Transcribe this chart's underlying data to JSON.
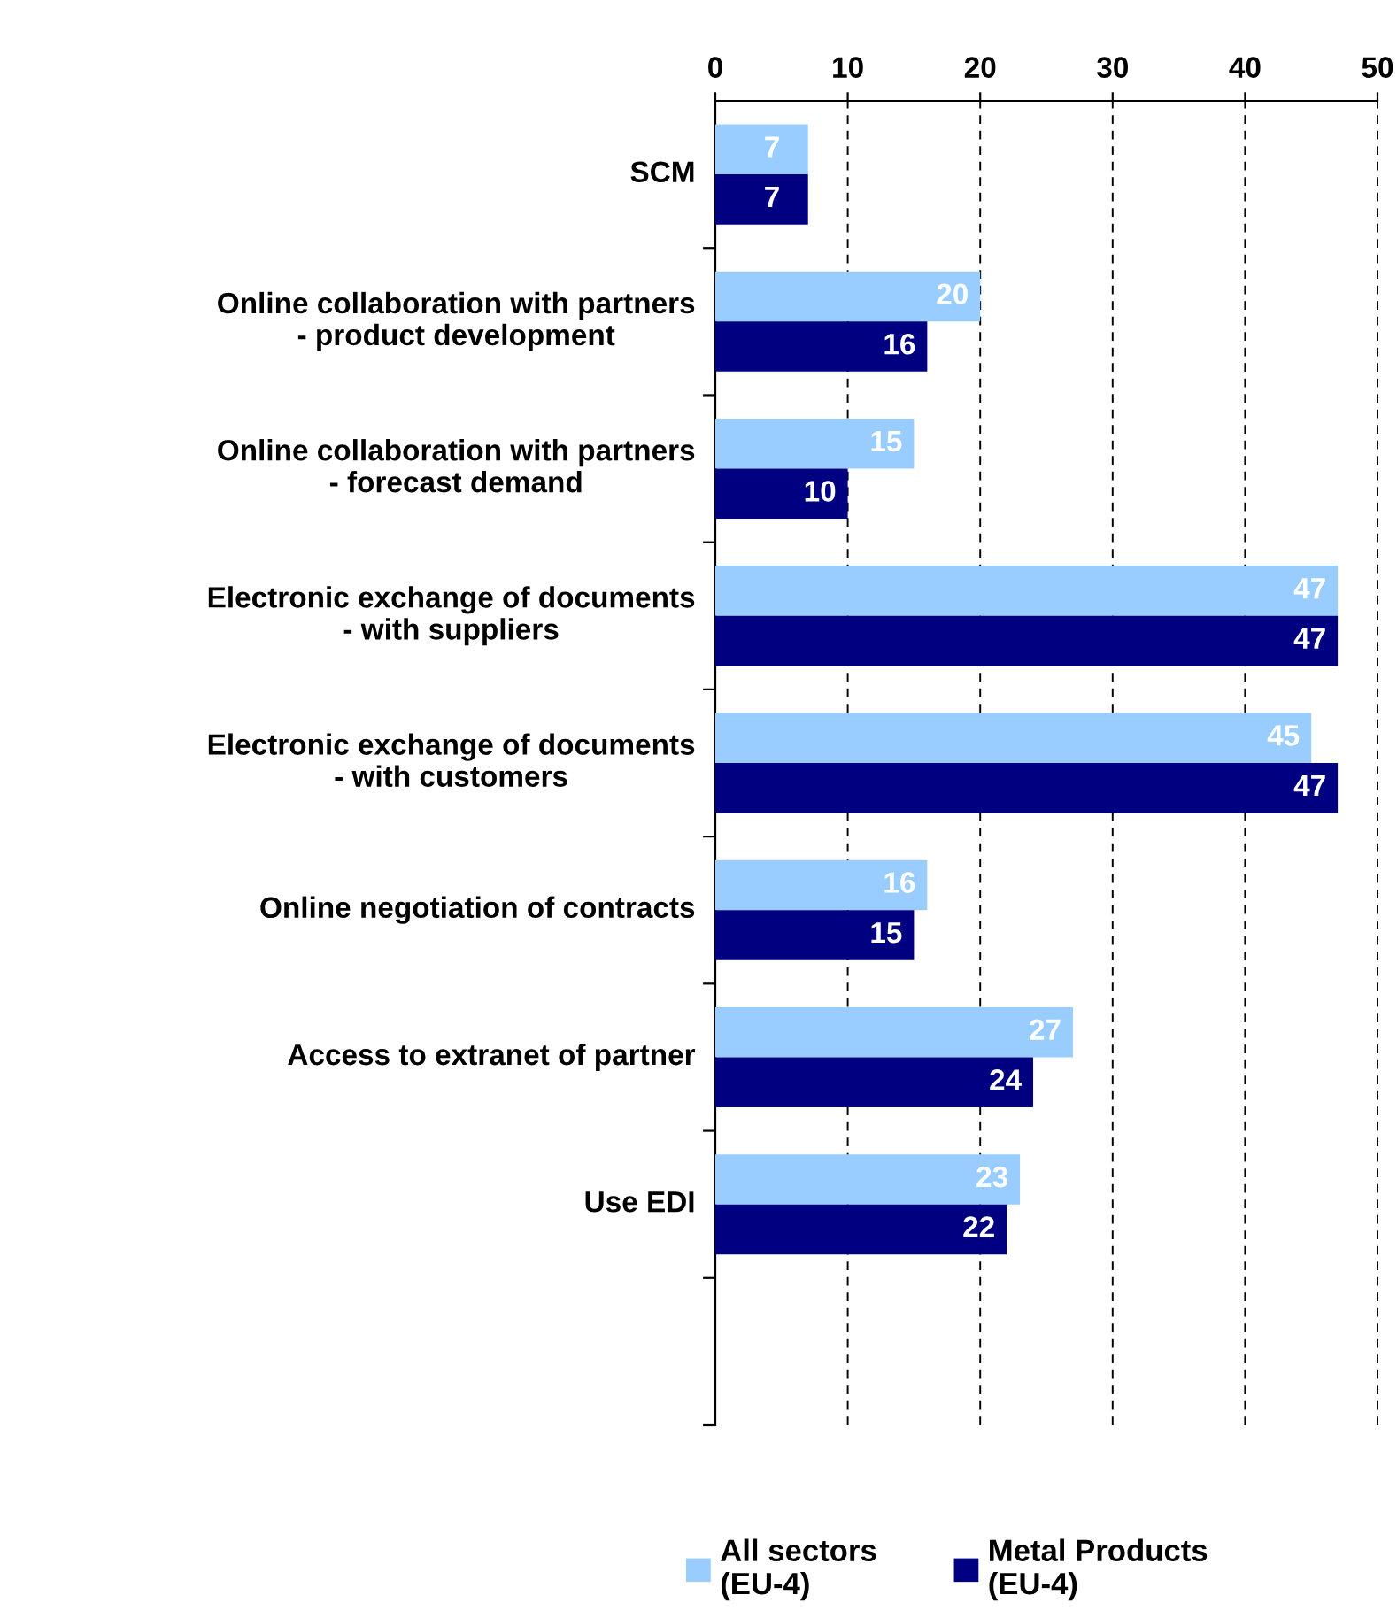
{
  "chart_data": {
    "type": "bar",
    "orientation": "horizontal",
    "categories": [
      "SCM",
      "Online collaboration with partners\n- product development",
      "Online collaboration with partners\n- forecast demand",
      "Electronic exchange of documents\n- with suppliers",
      "Electronic exchange of documents\n- with customers",
      "Online negotiation of contracts",
      "Access to extranet of partner",
      "Use EDI",
      null
    ],
    "series": [
      {
        "name": "All sectors\n(EU-4)",
        "color": "#99ccff",
        "values": [
          7,
          20,
          15,
          47,
          45,
          16,
          27,
          23,
          null
        ]
      },
      {
        "name": "Metal Products\n(EU-4)",
        "color": "#000080",
        "values": [
          7,
          16,
          10,
          47,
          47,
          15,
          24,
          22,
          null
        ]
      }
    ],
    "xlim": [
      0,
      50
    ],
    "xticks": [
      0,
      10,
      20,
      30,
      40,
      50
    ],
    "grid": "x",
    "legend": "bottom",
    "data_labels": true
  }
}
